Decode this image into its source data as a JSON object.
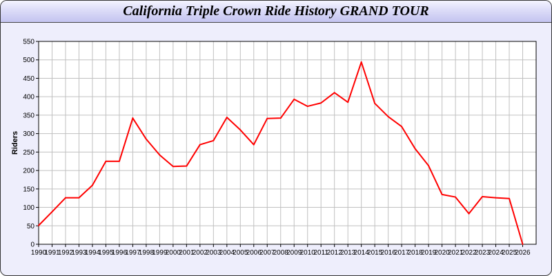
{
  "chart_data": {
    "type": "line",
    "title": "California Triple Crown Ride History GRAND TOUR",
    "xlabel": "",
    "ylabel": "Riders",
    "x": [
      1990,
      1991,
      1992,
      1993,
      1994,
      1995,
      1996,
      1997,
      1998,
      1999,
      2000,
      2001,
      2002,
      2003,
      2004,
      2005,
      2006,
      2007,
      2008,
      2009,
      2010,
      2011,
      2012,
      2013,
      2014,
      2015,
      2016,
      2017,
      2018,
      2019,
      2020,
      2021,
      2022,
      2023,
      2024,
      2025,
      2026
    ],
    "series": [
      {
        "values": [
          51,
          88,
          126,
          126,
          160,
          225,
          225,
          342,
          285,
          242,
          211,
          212,
          270,
          281,
          344,
          310,
          270,
          341,
          342,
          393,
          374,
          383,
          411,
          385,
          494,
          382,
          346,
          319,
          259,
          213,
          135,
          128,
          83,
          129,
          126,
          124,
          0
        ],
        "color": "#ff0000"
      }
    ],
    "xlim": [
      1990,
      2027
    ],
    "ylim": [
      0,
      550
    ],
    "yticks": [
      0,
      50,
      100,
      150,
      200,
      250,
      300,
      350,
      400,
      450,
      500,
      550
    ],
    "grid": true,
    "grid_color": "#c0c0c0",
    "background": "#eeeefc"
  }
}
